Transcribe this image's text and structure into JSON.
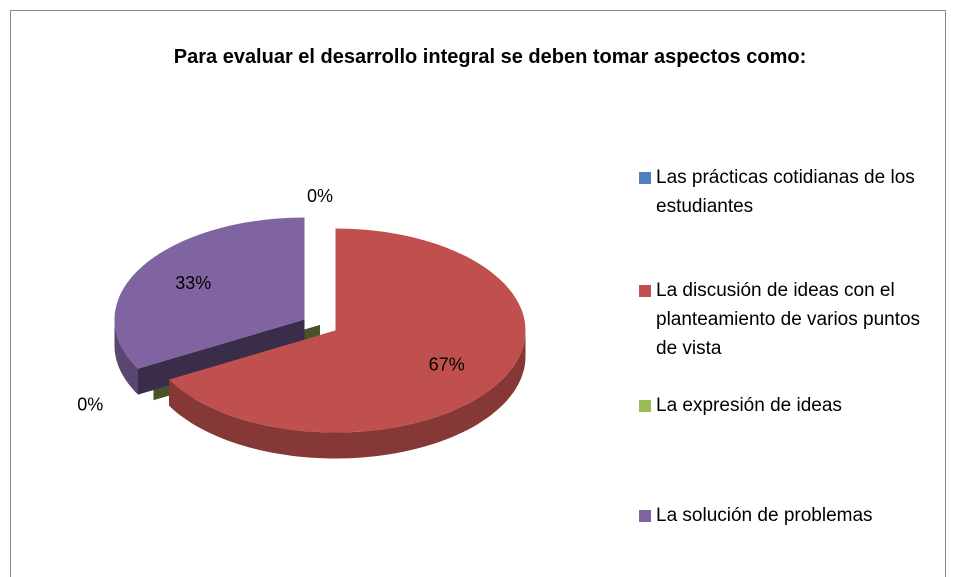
{
  "chart_data": {
    "type": "pie",
    "title": "Para evaluar el desarrollo integral se deben tomar aspectos como:",
    "categories": [
      "Las prácticas cotidianas de los estudiantes",
      "La discusión de ideas con el planteamiento de varios puntos de vista",
      "La expresión de ideas",
      "La solución de problemas"
    ],
    "values": [
      0,
      67,
      0,
      33
    ],
    "value_labels": [
      "0%",
      "67%",
      "0%",
      "33%"
    ],
    "colors": [
      "#4f81bd",
      "#c0504d",
      "#9bbb59",
      "#8064a2"
    ],
    "legend": "right"
  }
}
